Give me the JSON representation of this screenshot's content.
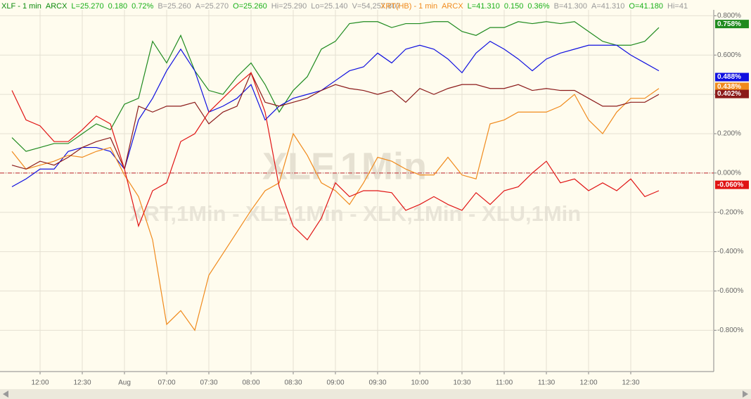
{
  "header": [
    {
      "items": [
        {
          "text": "XLF - 1 min",
          "color": "#0c8a0c"
        },
        {
          "text": "ARCX",
          "color": "#0c8a0c"
        },
        {
          "text": "L=25.270",
          "color": "#19b019"
        },
        {
          "text": "0.180",
          "color": "#19b019"
        },
        {
          "text": "0.72%",
          "color": "#19b019"
        },
        {
          "text": "B=25.260",
          "color": "#999999"
        },
        {
          "text": "A=25.270",
          "color": "#999999"
        },
        {
          "text": "O=25.260",
          "color": "#19b019"
        },
        {
          "text": "Hi=25.290",
          "color": "#999999"
        },
        {
          "text": "Lo=25.140",
          "color": "#999999"
        },
        {
          "text": "V=54,257,807",
          "color": "#999999"
        }
      ]
    },
    {
      "items": [
        {
          "text": "XRT(HB) - 1 min",
          "color": "#f08a1c"
        },
        {
          "text": "ARCX",
          "color": "#f08a1c"
        },
        {
          "text": "L=41.310",
          "color": "#19b019"
        },
        {
          "text": "0.150",
          "color": "#19b019"
        },
        {
          "text": "0.36%",
          "color": "#19b019"
        },
        {
          "text": "B=41.300",
          "color": "#999999"
        },
        {
          "text": "A=41.310",
          "color": "#999999"
        },
        {
          "text": "O=41.180",
          "color": "#19b019"
        },
        {
          "text": "Hi=41",
          "color": "#999999"
        }
      ]
    }
  ],
  "watermark": {
    "main": "XLF,1Min",
    "sub": "XRT,1Min - XLE,1Min - XLK,1Min - XLU,1Min"
  },
  "chart_data": {
    "type": "line",
    "categories": [
      null,
      null,
      "12:00",
      null,
      null,
      "12:30",
      null,
      null,
      "Aug",
      null,
      null,
      "07:00",
      null,
      null,
      "07:30",
      null,
      null,
      "08:00",
      null,
      null,
      "08:30",
      null,
      null,
      "09:00",
      null,
      null,
      "09:30",
      null,
      null,
      "10:00",
      null,
      null,
      "10:30",
      null,
      null,
      "11:00",
      null,
      null,
      "11:30",
      null,
      null,
      "12:00",
      null,
      null,
      "12:30",
      null,
      null
    ],
    "ylim": [
      -1.01,
      0.83
    ],
    "yticks": [
      {
        "value": -0.8,
        "label": "-0.800%"
      },
      {
        "value": -0.6,
        "label": "-0.600%"
      },
      {
        "value": -0.4,
        "label": "-0.400%"
      },
      {
        "value": -0.2,
        "label": "-0.200%"
      },
      {
        "value": 0,
        "label": "0.000%"
      },
      {
        "value": 0.2,
        "label": "0.200%"
      },
      {
        "value": 0.4,
        "label": "0.400%"
      },
      {
        "value": 0.6,
        "label": "0.600%"
      },
      {
        "value": 0.8,
        "label": "0.800%"
      }
    ],
    "grid": true,
    "series": [
      {
        "color": "#1e8a1e",
        "last": {
          "value": 0.758,
          "label": "0.758%"
        },
        "values": [
          0.18,
          0.11,
          0.13,
          0.15,
          0.15,
          0.2,
          0.25,
          0.22,
          0.35,
          0.38,
          0.67,
          0.56,
          0.7,
          0.52,
          0.42,
          0.4,
          0.49,
          0.56,
          0.45,
          0.31,
          0.42,
          0.49,
          0.63,
          0.67,
          0.76,
          0.77,
          0.77,
          0.74,
          0.76,
          0.76,
          0.77,
          0.77,
          0.72,
          0.7,
          0.74,
          0.74,
          0.77,
          0.76,
          0.77,
          0.76,
          0.77,
          0.72,
          0.67,
          0.65,
          0.65,
          0.67,
          0.74
        ]
      },
      {
        "color": "#1010e0",
        "last": {
          "value": 0.488,
          "label": "0.488%"
        },
        "values": [
          -0.07,
          -0.03,
          0.02,
          0.02,
          0.11,
          0.13,
          0.13,
          0.11,
          0.02,
          0.27,
          0.38,
          0.52,
          0.63,
          0.52,
          0.31,
          0.34,
          0.38,
          0.45,
          0.27,
          0.34,
          0.38,
          0.4,
          0.42,
          0.47,
          0.52,
          0.54,
          0.61,
          0.56,
          0.63,
          0.65,
          0.63,
          0.58,
          0.51,
          0.61,
          0.67,
          0.63,
          0.58,
          0.52,
          0.58,
          0.61,
          0.63,
          0.65,
          0.65,
          0.65,
          0.6,
          0.56,
          0.52
        ]
      },
      {
        "color": "#f08a1c",
        "last": {
          "value": 0.438,
          "label": "0.438%"
        },
        "values": [
          0.11,
          0.02,
          0.04,
          0.06,
          0.09,
          0.08,
          0.11,
          0.13,
          -0.01,
          -0.12,
          -0.34,
          -0.77,
          -0.7,
          -0.8,
          -0.52,
          -0.41,
          -0.3,
          -0.19,
          -0.09,
          -0.05,
          0.2,
          0.09,
          -0.05,
          -0.09,
          -0.16,
          -0.05,
          0.08,
          0.06,
          0.02,
          -0.01,
          -0.01,
          0.08,
          -0.01,
          -0.03,
          0.25,
          0.27,
          0.31,
          0.31,
          0.31,
          0.34,
          0.4,
          0.27,
          0.2,
          0.31,
          0.38,
          0.38,
          0.43
        ]
      },
      {
        "color": "#8b1a1a",
        "last": {
          "value": 0.402,
          "label": "0.402%"
        },
        "values": [
          0.04,
          0.02,
          0.06,
          0.04,
          0.08,
          0.13,
          0.16,
          0.18,
          0.02,
          0.34,
          0.31,
          0.34,
          0.34,
          0.36,
          0.25,
          0.31,
          0.34,
          0.51,
          0.36,
          0.34,
          0.36,
          0.38,
          0.42,
          0.45,
          0.43,
          0.42,
          0.4,
          0.42,
          0.36,
          0.43,
          0.4,
          0.43,
          0.45,
          0.45,
          0.43,
          0.43,
          0.45,
          0.42,
          0.43,
          0.42,
          0.42,
          0.38,
          0.34,
          0.34,
          0.36,
          0.36,
          0.4
        ]
      },
      {
        "color": "#e01414",
        "last": {
          "value": -0.06,
          "label": "-0.060%"
        },
        "values": [
          0.42,
          0.27,
          0.24,
          0.16,
          0.16,
          0.22,
          0.29,
          0.25,
          0.02,
          -0.27,
          -0.09,
          -0.05,
          0.16,
          0.2,
          0.31,
          0.38,
          0.45,
          0.51,
          0.31,
          -0.07,
          -0.27,
          -0.34,
          -0.23,
          -0.05,
          -0.12,
          -0.09,
          -0.09,
          -0.1,
          -0.19,
          -0.16,
          -0.12,
          -0.16,
          -0.19,
          -0.1,
          -0.16,
          -0.09,
          -0.07,
          0.0,
          0.06,
          -0.05,
          -0.03,
          -0.09,
          -0.05,
          -0.09,
          -0.03,
          -0.12,
          -0.09
        ]
      }
    ]
  }
}
